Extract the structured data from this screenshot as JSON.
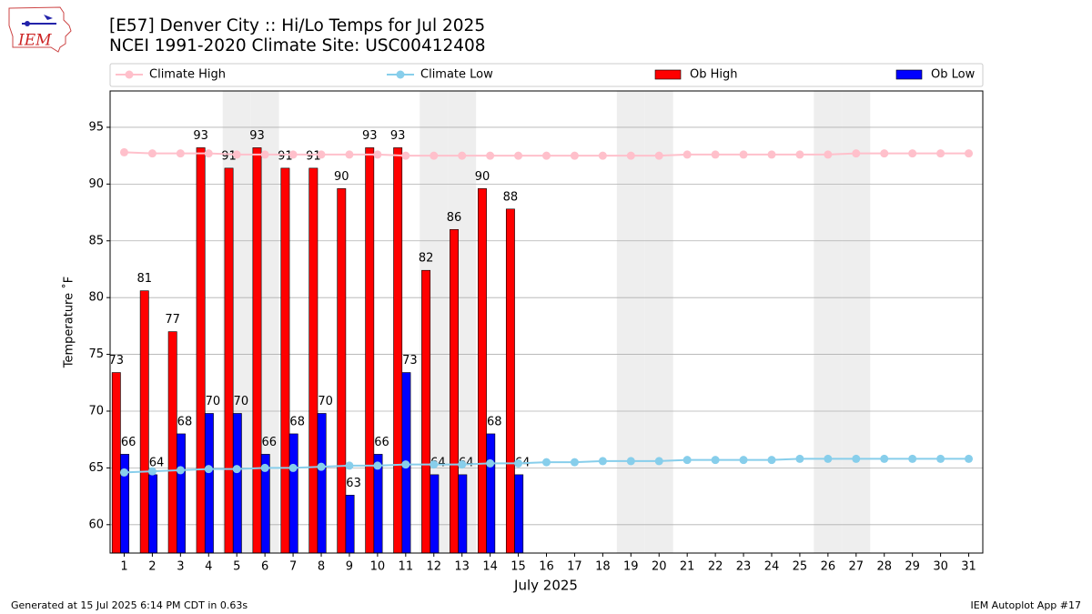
{
  "chart_data": {
    "type": "bar",
    "logo_text": "IEM",
    "title": "[E57] Denver City :: Hi/Lo Temps for Jul 2025",
    "subtitle": "NCEI 1991-2020 Climate Site: USC00412408",
    "x_label": "July 2025",
    "y_label": "Temperature ˚F",
    "footer_left": "Generated at 15 Jul 2025 6:14 PM CDT in 0.63s",
    "footer_right": "IEM Autoplot App #17",
    "x": [
      1,
      2,
      3,
      4,
      5,
      6,
      7,
      8,
      9,
      10,
      11,
      12,
      13,
      14,
      15,
      16,
      17,
      18,
      19,
      20,
      21,
      22,
      23,
      24,
      25,
      26,
      27,
      28,
      29,
      30,
      31
    ],
    "xlim": [
      0.5,
      31.5
    ],
    "xticks": [
      1,
      2,
      3,
      4,
      5,
      6,
      7,
      8,
      9,
      10,
      11,
      12,
      13,
      14,
      15,
      16,
      17,
      18,
      19,
      20,
      21,
      22,
      23,
      24,
      25,
      26,
      27,
      28,
      29,
      30,
      31
    ],
    "ylim": [
      57.5,
      98.2
    ],
    "yticks": [
      60,
      65,
      70,
      75,
      80,
      85,
      90,
      95
    ],
    "grid": true,
    "weekend_days": [
      5,
      6,
      12,
      13,
      19,
      20,
      26,
      27
    ],
    "series": [
      {
        "name": "Climate High",
        "kind": "line",
        "color": "#ffc0cb",
        "values": [
          92.8,
          92.7,
          92.7,
          92.7,
          92.6,
          92.6,
          92.6,
          92.6,
          92.6,
          92.6,
          92.5,
          92.5,
          92.5,
          92.5,
          92.5,
          92.5,
          92.5,
          92.5,
          92.5,
          92.5,
          92.6,
          92.6,
          92.6,
          92.6,
          92.6,
          92.6,
          92.7,
          92.7,
          92.7,
          92.7,
          92.7
        ]
      },
      {
        "name": "Climate Low",
        "kind": "line",
        "color": "#87ceeb",
        "values": [
          64.6,
          64.7,
          64.8,
          64.9,
          64.9,
          65.0,
          65.0,
          65.1,
          65.2,
          65.2,
          65.3,
          65.3,
          65.3,
          65.4,
          65.4,
          65.5,
          65.5,
          65.6,
          65.6,
          65.6,
          65.7,
          65.7,
          65.7,
          65.7,
          65.8,
          65.8,
          65.8,
          65.8,
          65.8,
          65.8,
          65.8
        ]
      },
      {
        "name": "Ob High",
        "kind": "bar",
        "color": "#ff0000",
        "values": [
          73.4,
          80.6,
          77.0,
          93.2,
          91.4,
          93.2,
          91.4,
          91.4,
          89.6,
          93.2,
          93.2,
          82.4,
          86.0,
          89.6,
          87.8,
          null,
          null,
          null,
          null,
          null,
          null,
          null,
          null,
          null,
          null,
          null,
          null,
          null,
          null,
          null,
          null
        ],
        "value_labels": [
          "73",
          "81",
          "77",
          "93",
          "91",
          "93",
          "91",
          "91",
          "90",
          "93",
          "93",
          "82",
          "86",
          "90",
          "88",
          null,
          null,
          null,
          null,
          null,
          null,
          null,
          null,
          null,
          null,
          null,
          null,
          null,
          null,
          null,
          null
        ]
      },
      {
        "name": "Ob Low",
        "kind": "bar",
        "color": "#0000ff",
        "values": [
          66.2,
          64.4,
          68.0,
          69.8,
          69.8,
          66.2,
          68.0,
          69.8,
          62.6,
          66.2,
          73.4,
          64.4,
          64.4,
          68.0,
          64.4,
          null,
          null,
          null,
          null,
          null,
          null,
          null,
          null,
          null,
          null,
          null,
          null,
          null,
          null,
          null,
          null
        ],
        "value_labels": [
          "66",
          "64",
          "68",
          "70",
          "70",
          "66",
          "68",
          "70",
          "63",
          "66",
          "73",
          "64",
          "64",
          "68",
          "64",
          null,
          null,
          null,
          null,
          null,
          null,
          null,
          null,
          null,
          null,
          null,
          null,
          null,
          null,
          null,
          null
        ]
      }
    ]
  }
}
